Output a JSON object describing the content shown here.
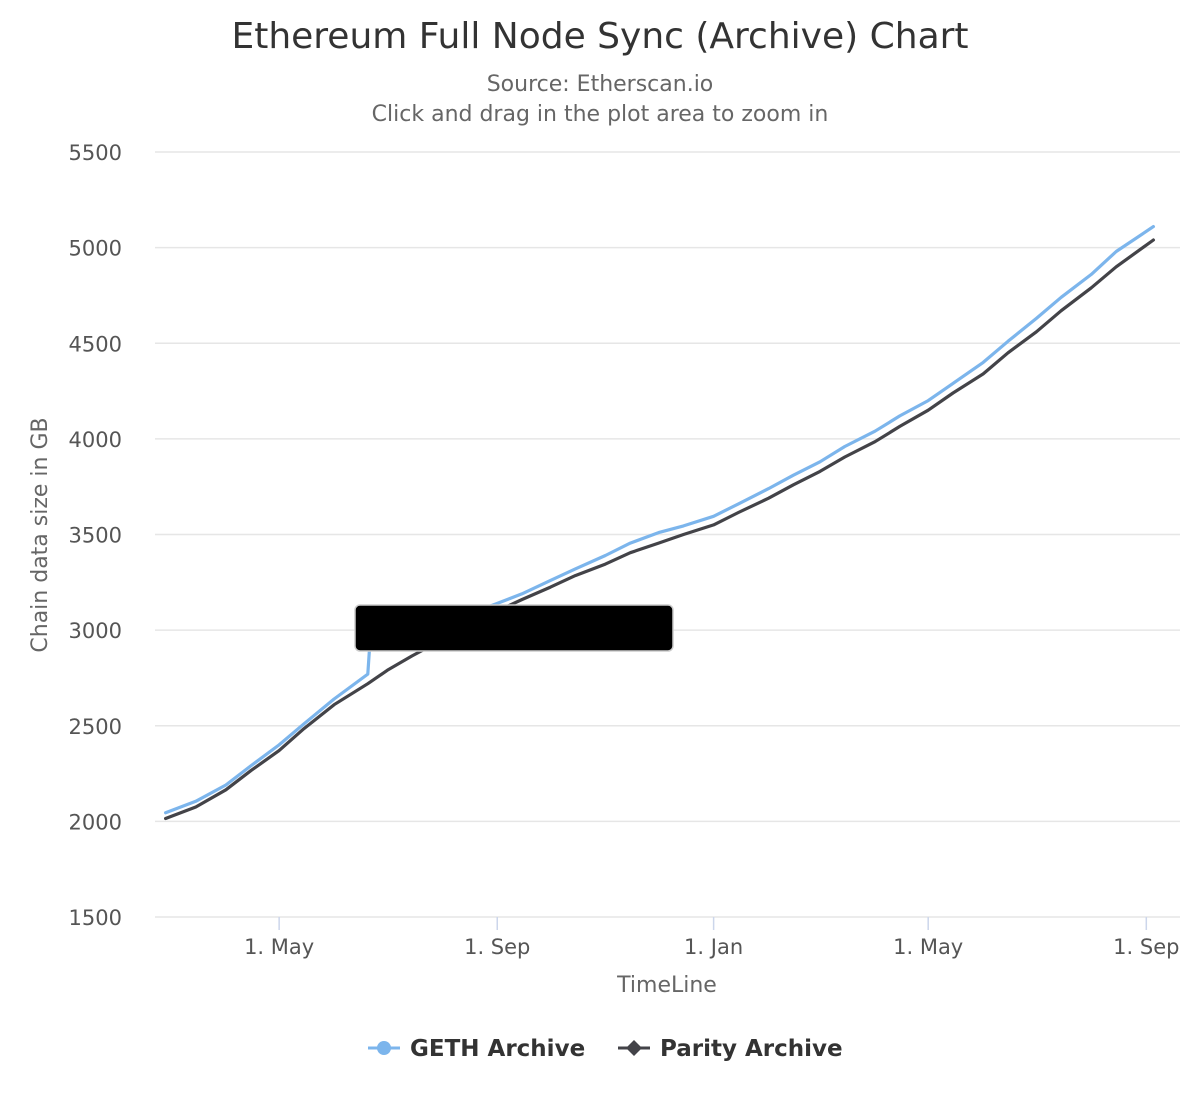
{
  "chart_data": {
    "type": "line",
    "title": "Ethereum Full Node Sync (Archive) Chart",
    "subtitle_lines": [
      "Source: Etherscan.io",
      "Click and drag in the plot area to zoom in"
    ],
    "xlabel": "TimeLine",
    "ylabel": "Chain data size in GB",
    "x_type": "datetime",
    "xlim": [
      "2019-02-20",
      "2020-09-20"
    ],
    "ylim": [
      1500,
      5500
    ],
    "yticks": [
      1500,
      2000,
      2500,
      3000,
      3500,
      4000,
      4500,
      5000,
      5500
    ],
    "xticks": [
      {
        "date": "2019-05-01",
        "label": "1. May"
      },
      {
        "date": "2019-09-01",
        "label": "1. Sep"
      },
      {
        "date": "2020-01-01",
        "label": "1. Jan"
      },
      {
        "date": "2020-05-01",
        "label": "1. May"
      },
      {
        "date": "2020-09-01",
        "label": "1. Sep"
      }
    ],
    "grid": true,
    "legend_position": "bottom-center",
    "series": [
      {
        "name": "GETH Archive",
        "color": "#7cb5ec",
        "marker": "circle",
        "points": [
          [
            "2019-02-26",
            2045
          ],
          [
            "2019-03-15",
            2105
          ],
          [
            "2019-04-01",
            2190
          ],
          [
            "2019-04-15",
            2290
          ],
          [
            "2019-05-01",
            2400
          ],
          [
            "2019-05-15",
            2510
          ],
          [
            "2019-06-01",
            2640
          ],
          [
            "2019-06-20",
            2770
          ],
          [
            "2019-06-21",
            2910
          ],
          [
            "2019-07-15",
            3000
          ],
          [
            "2019-08-01",
            3040
          ],
          [
            "2019-08-15",
            3080
          ],
          [
            "2019-09-01",
            3140
          ],
          [
            "2019-09-15",
            3190
          ],
          [
            "2019-10-01",
            3260
          ],
          [
            "2019-10-15",
            3320
          ],
          [
            "2019-11-01",
            3390
          ],
          [
            "2019-11-15",
            3455
          ],
          [
            "2019-12-01",
            3510
          ],
          [
            "2019-12-15",
            3545
          ],
          [
            "2020-01-01",
            3595
          ],
          [
            "2020-01-15",
            3660
          ],
          [
            "2020-02-01",
            3740
          ],
          [
            "2020-02-15",
            3810
          ],
          [
            "2020-03-01",
            3880
          ],
          [
            "2020-03-15",
            3960
          ],
          [
            "2020-04-01",
            4040
          ],
          [
            "2020-04-15",
            4120
          ],
          [
            "2020-05-01",
            4200
          ],
          [
            "2020-05-15",
            4290
          ],
          [
            "2020-06-01",
            4400
          ],
          [
            "2020-06-15",
            4510
          ],
          [
            "2020-07-01",
            4630
          ],
          [
            "2020-07-15",
            4740
          ],
          [
            "2020-08-01",
            4860
          ],
          [
            "2020-08-15",
            4980
          ],
          [
            "2020-09-05",
            5110
          ]
        ]
      },
      {
        "name": "Parity Archive",
        "color": "#434348",
        "marker": "diamond",
        "points": [
          [
            "2019-02-26",
            2015
          ],
          [
            "2019-03-15",
            2075
          ],
          [
            "2019-04-01",
            2165
          ],
          [
            "2019-04-15",
            2265
          ],
          [
            "2019-05-01",
            2370
          ],
          [
            "2019-05-15",
            2485
          ],
          [
            "2019-06-01",
            2610
          ],
          [
            "2019-06-20",
            2720
          ],
          [
            "2019-07-01",
            2790
          ],
          [
            "2019-07-15",
            2865
          ],
          [
            "2019-08-01",
            2950
          ],
          [
            "2019-08-15",
            3030
          ],
          [
            "2019-09-01",
            3100
          ],
          [
            "2019-09-15",
            3160
          ],
          [
            "2019-10-01",
            3225
          ],
          [
            "2019-10-15",
            3285
          ],
          [
            "2019-11-01",
            3345
          ],
          [
            "2019-11-15",
            3405
          ],
          [
            "2019-12-01",
            3455
          ],
          [
            "2019-12-15",
            3500
          ],
          [
            "2020-01-01",
            3550
          ],
          [
            "2020-01-15",
            3615
          ],
          [
            "2020-02-01",
            3690
          ],
          [
            "2020-02-15",
            3760
          ],
          [
            "2020-03-01",
            3830
          ],
          [
            "2020-03-15",
            3905
          ],
          [
            "2020-04-01",
            3985
          ],
          [
            "2020-04-15",
            4065
          ],
          [
            "2020-05-01",
            4150
          ],
          [
            "2020-05-15",
            4240
          ],
          [
            "2020-06-01",
            4340
          ],
          [
            "2020-06-15",
            4450
          ],
          [
            "2020-07-01",
            4560
          ],
          [
            "2020-07-15",
            4670
          ],
          [
            "2020-08-01",
            4790
          ],
          [
            "2020-08-15",
            4900
          ],
          [
            "2020-09-05",
            5040
          ]
        ]
      }
    ]
  },
  "colors": {
    "redaction": "#000000",
    "grid": "#e6e6e6"
  }
}
